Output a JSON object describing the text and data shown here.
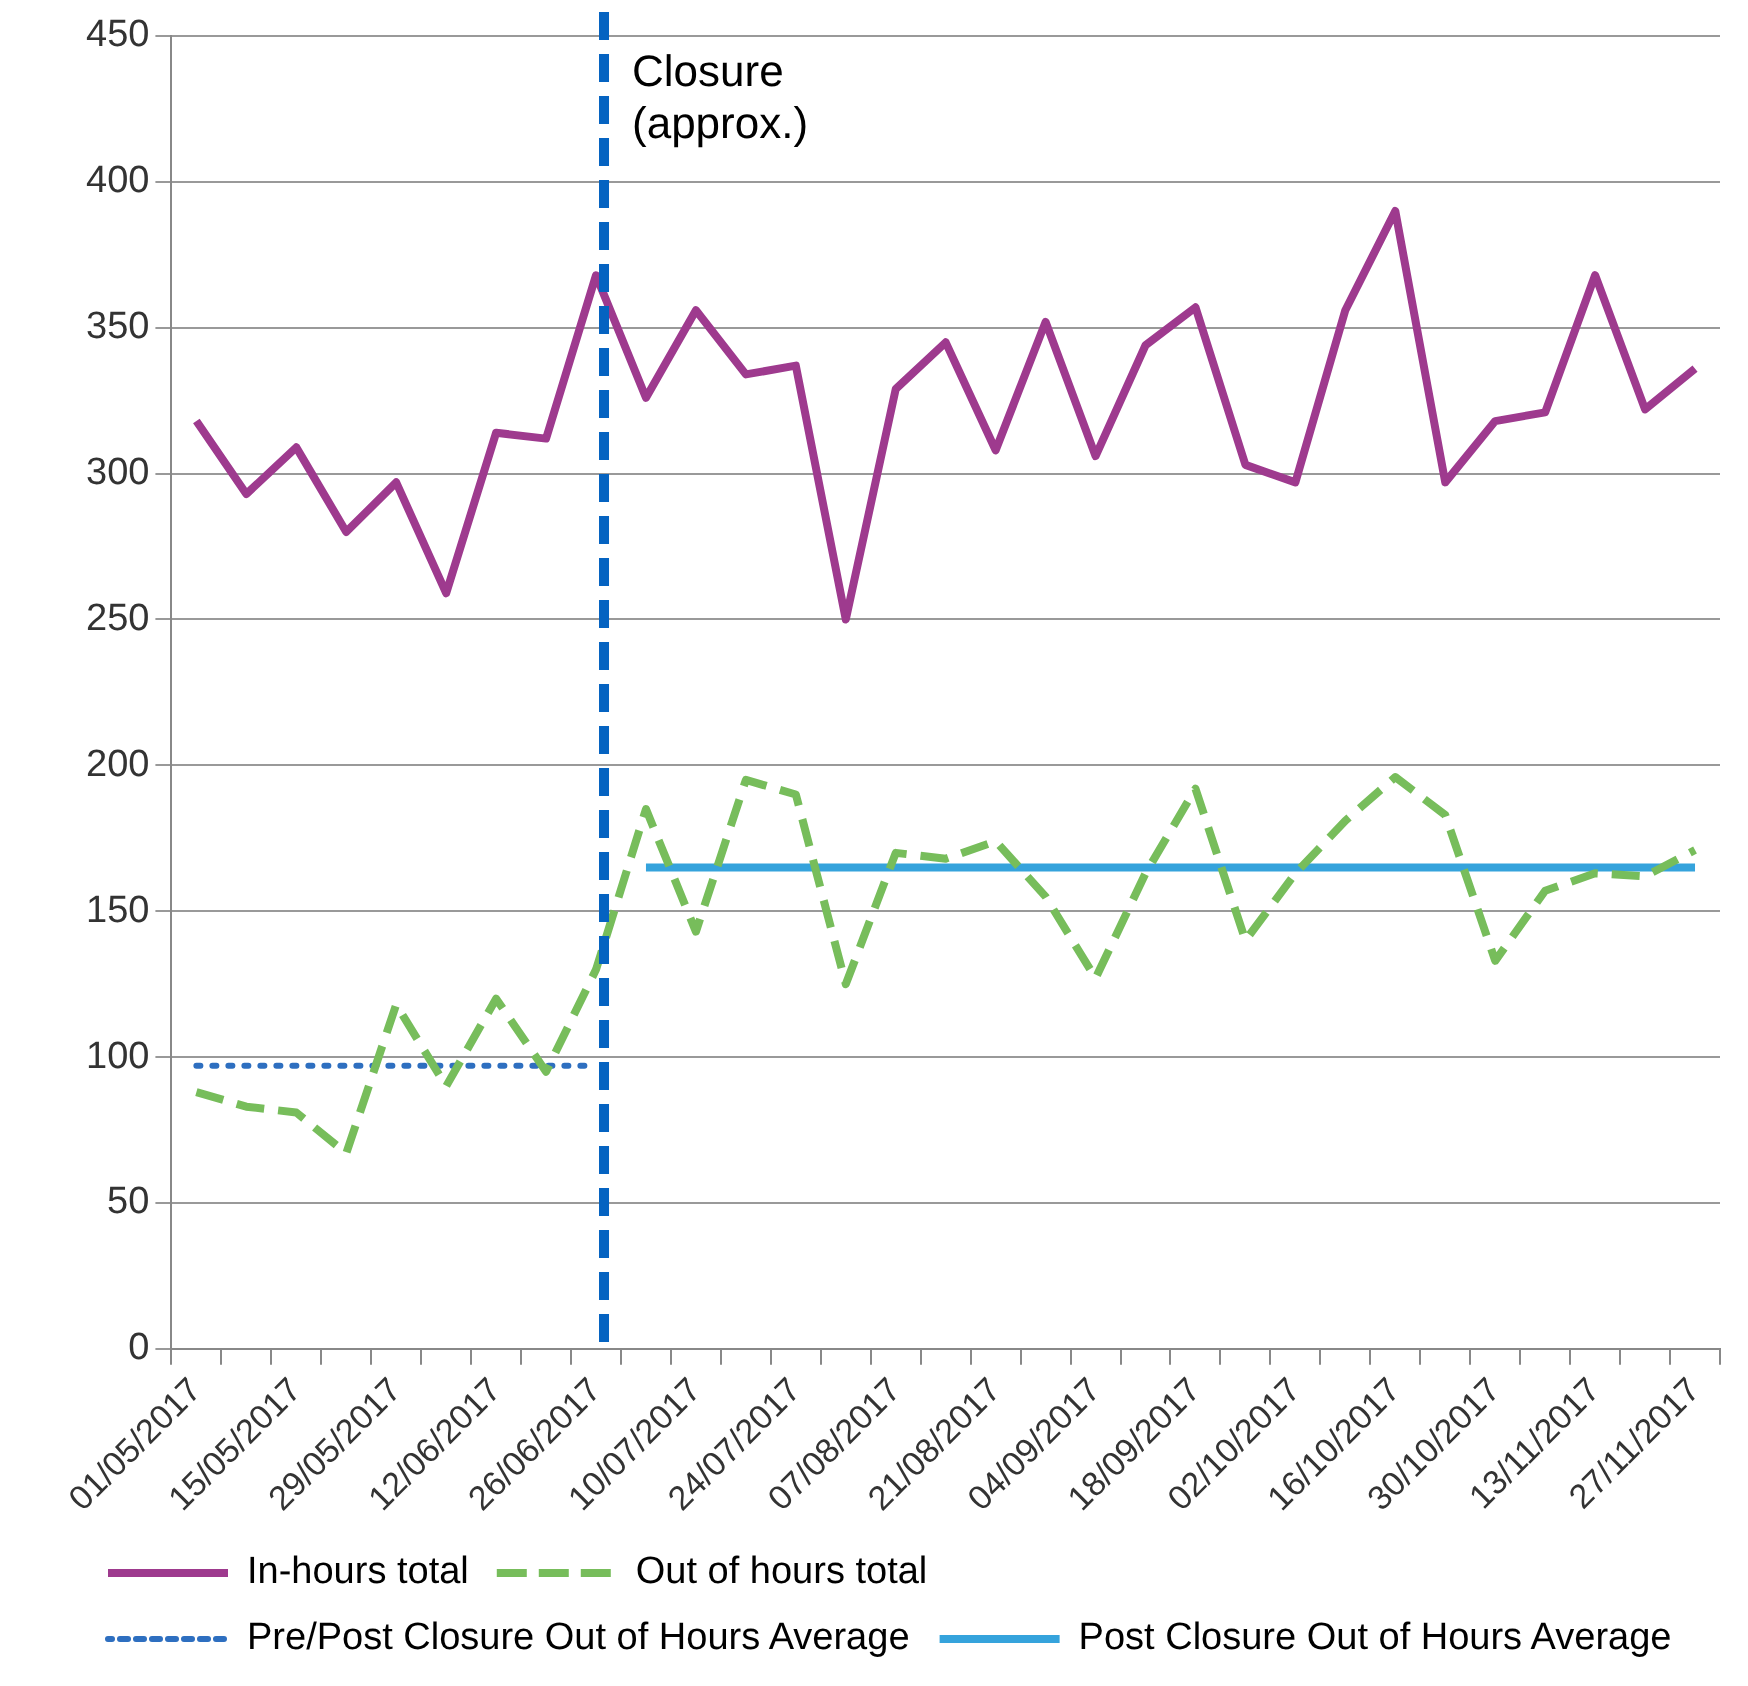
{
  "chart_data": {
    "type": "line",
    "categories": [
      "01/05/2017",
      null,
      "15/05/2017",
      null,
      "29/05/2017",
      null,
      "12/06/2017",
      null,
      "26/06/2017",
      null,
      "10/07/2017",
      null,
      "24/07/2017",
      null,
      "07/08/2017",
      null,
      "21/08/2017",
      null,
      "04/09/2017",
      null,
      "18/09/2017",
      null,
      "02/10/2017",
      null,
      "16/10/2017",
      null,
      "30/10/2017",
      null,
      "13/11/2017",
      null,
      "27/11/2017"
    ],
    "series": [
      {
        "name": "In-hours total",
        "color": "#9e3a8e",
        "line_style": "solid",
        "values": [
          318,
          293,
          309,
          280,
          297,
          259,
          314,
          312,
          368,
          326,
          356,
          334,
          337,
          250,
          329,
          345,
          308,
          352,
          306,
          344,
          357,
          303,
          297,
          356,
          390,
          297,
          318,
          321,
          368,
          322,
          336
        ]
      },
      {
        "name": "Out of hours total",
        "color": "#77bd5b",
        "line_style": "dashed",
        "values": [
          88,
          83,
          81,
          67,
          118,
          90,
          120,
          95,
          130,
          185,
          143,
          195,
          190,
          125,
          170,
          168,
          174,
          155,
          127,
          163,
          192,
          140,
          163,
          181,
          196,
          183,
          133,
          157,
          163,
          162,
          171
        ]
      },
      {
        "name": "Pre/Post Closure Out of Hours Average",
        "color": "#2e6fc0",
        "line_style": "dotted",
        "values": [
          97,
          97,
          97,
          97,
          97,
          97,
          97,
          97,
          97,
          null,
          null,
          null,
          null,
          null,
          null,
          null,
          null,
          null,
          null,
          null,
          null,
          null,
          null,
          null,
          null,
          null,
          null,
          null,
          null,
          null,
          null
        ]
      },
      {
        "name": "Post Closure Out of Hours Average",
        "color": "#35a3dc",
        "line_style": "solid",
        "values": [
          null,
          null,
          null,
          null,
          null,
          null,
          null,
          null,
          null,
          165,
          165,
          165,
          165,
          165,
          165,
          165,
          165,
          165,
          165,
          165,
          165,
          165,
          165,
          165,
          165,
          165,
          165,
          165,
          165,
          165,
          165
        ]
      }
    ],
    "ylim": [
      0,
      450
    ],
    "yticks": [
      0,
      50,
      100,
      150,
      200,
      250,
      300,
      350,
      400,
      450
    ],
    "grid": "y",
    "legend": "bottom",
    "marker": "none",
    "ref_lines": [
      {
        "axis": "x",
        "value": "26/06/2017",
        "label": "Closure\n(approx.)",
        "color": "#0563c1",
        "line_style": "dashed"
      }
    ]
  }
}
